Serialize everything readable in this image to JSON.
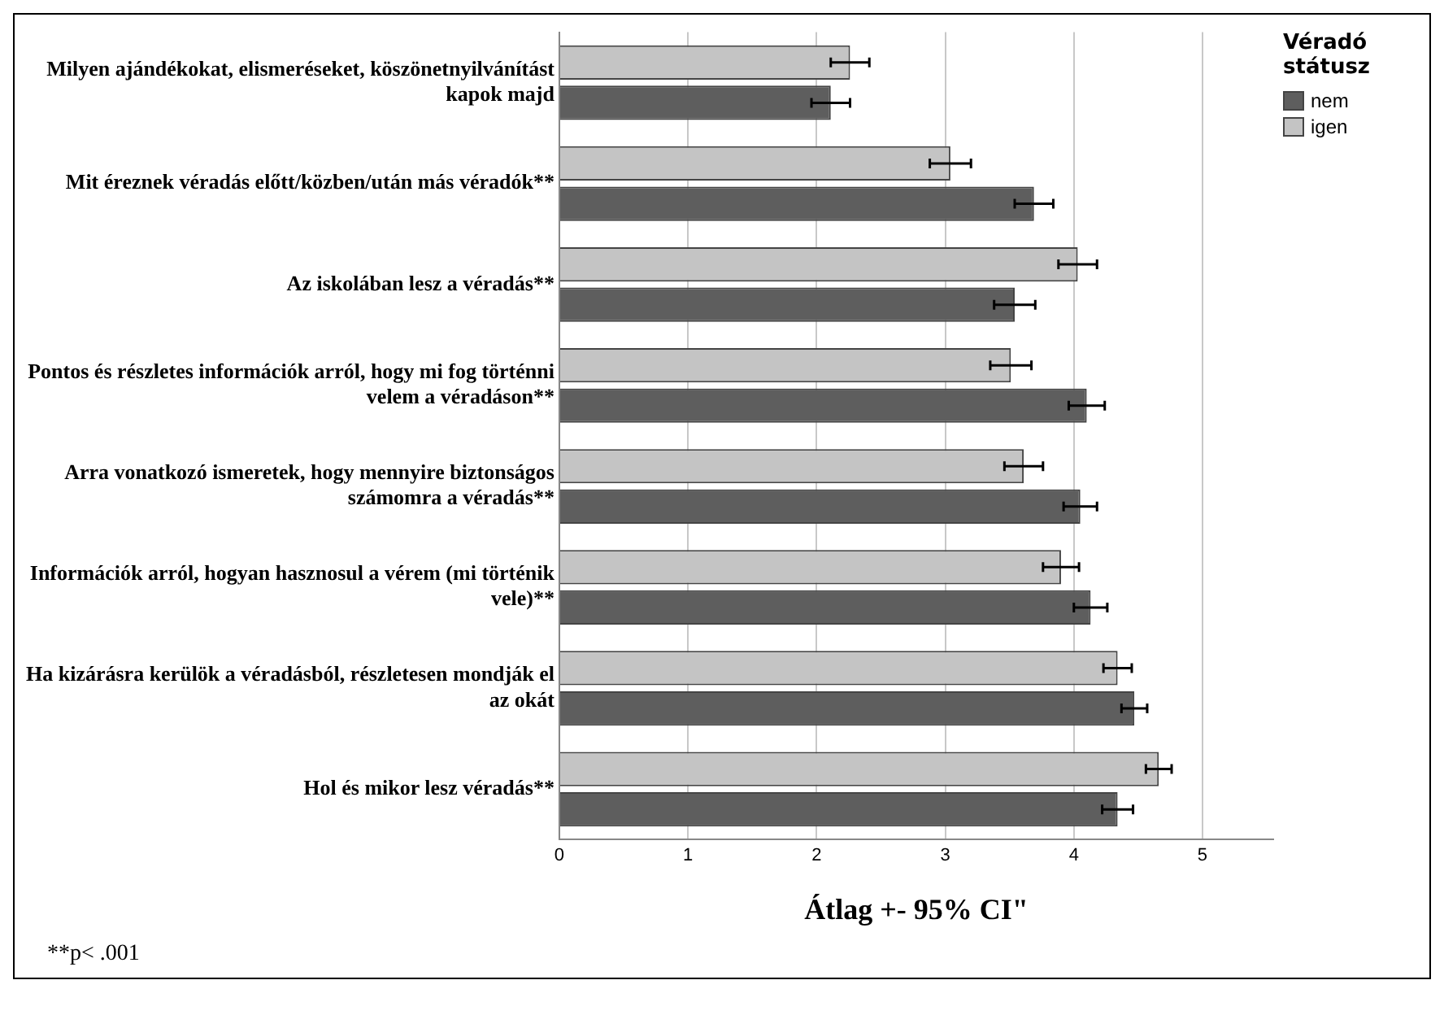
{
  "chart_data": {
    "type": "bar",
    "orientation": "horizontal",
    "xlabel": "Átlag +- 95% CI\"",
    "legend_title": "Véradó státusz",
    "legend": "top right",
    "grid": "x",
    "categories": [
      "Milyen ajándékokat, elismeréseket, köszönetnyilvánítást kapok majd",
      "Mit éreznek véradás előtt/közben/után más véradók**",
      "Az iskolában lesz a véradás**",
      "Pontos és részletes információk arról, hogy mi fog történni velem a véradáson**",
      "Arra vonatkozó ismeretek, hogy mennyire biztonságos számomra a véradás**",
      "Információk arról, hogyan hasznosul a vérem (mi történik vele)**",
      "Ha kizárásra kerülök a véradásból, részletesen mondják el az okát",
      "Hol és mikor lesz véradás**"
    ],
    "series": [
      {
        "name": "igen",
        "color": "#c4c4c4",
        "values": [
          2.26,
          3.04,
          4.03,
          3.51,
          3.61,
          3.9,
          4.34,
          4.66
        ],
        "errors": [
          0.15,
          0.16,
          0.15,
          0.16,
          0.15,
          0.14,
          0.11,
          0.1
        ]
      },
      {
        "name": "nem",
        "color": "#5e5e5e",
        "values": [
          2.11,
          3.69,
          3.54,
          4.1,
          4.05,
          4.13,
          4.47,
          4.34
        ],
        "errors": [
          0.15,
          0.15,
          0.16,
          0.14,
          0.13,
          0.13,
          0.1,
          0.12
        ]
      }
    ],
    "xlim": [
      0,
      5.55
    ],
    "xticks": [
      0,
      1,
      2,
      3,
      4,
      5
    ],
    "annotations": [
      "**p< .001"
    ]
  }
}
